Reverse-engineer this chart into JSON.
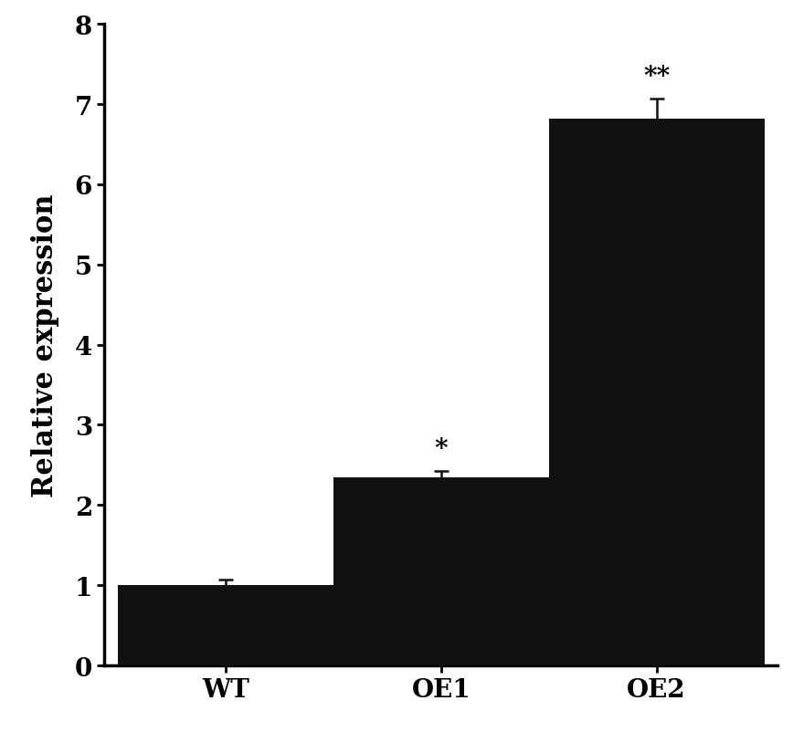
{
  "categories": [
    "WT",
    "OE1",
    "OE2"
  ],
  "values": [
    1.0,
    2.35,
    6.82
  ],
  "errors": [
    0.07,
    0.08,
    0.25
  ],
  "bar_color": "#111111",
  "bar_width": 0.32,
  "ylabel": "Relative expression",
  "ylim": [
    0,
    8
  ],
  "yticks": [
    0,
    1,
    2,
    3,
    4,
    5,
    6,
    7,
    8
  ],
  "significance": [
    "",
    "*",
    "**"
  ],
  "sig_fontsize": 20,
  "label_fontsize": 22,
  "tick_fontsize": 20,
  "background_color": "#ffffff",
  "error_capsize": 6,
  "error_linewidth": 1.8,
  "error_color": "#111111",
  "x_positions": [
    0.18,
    0.5,
    0.82
  ]
}
